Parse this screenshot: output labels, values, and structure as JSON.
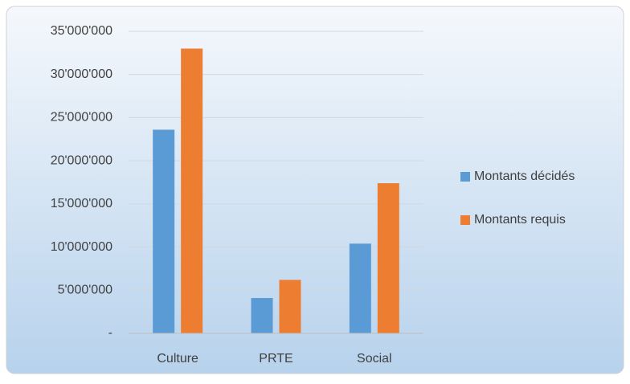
{
  "chart_data": {
    "type": "bar",
    "categories": [
      "Culture",
      "PRTE",
      "Social"
    ],
    "series": [
      {
        "name": "Montants décidés",
        "color": "#5b9bd5",
        "values": [
          23600000,
          4100000,
          10400000
        ]
      },
      {
        "name": "Montants requis",
        "color": "#ed7d31",
        "values": [
          33000000,
          6200000,
          17400000
        ]
      }
    ],
    "ylim": [
      0,
      35000000
    ],
    "yticks": [
      {
        "value": 0,
        "label": "-"
      },
      {
        "value": 5000000,
        "label": "5'000'000"
      },
      {
        "value": 10000000,
        "label": "10'000'000"
      },
      {
        "value": 15000000,
        "label": "15'000'000"
      },
      {
        "value": 20000000,
        "label": "20'000'000"
      },
      {
        "value": 25000000,
        "label": "25'000'000"
      },
      {
        "value": 30000000,
        "label": "30'000'000"
      },
      {
        "value": 35000000,
        "label": "35'000'000"
      }
    ],
    "grid": true,
    "legend": "right"
  }
}
